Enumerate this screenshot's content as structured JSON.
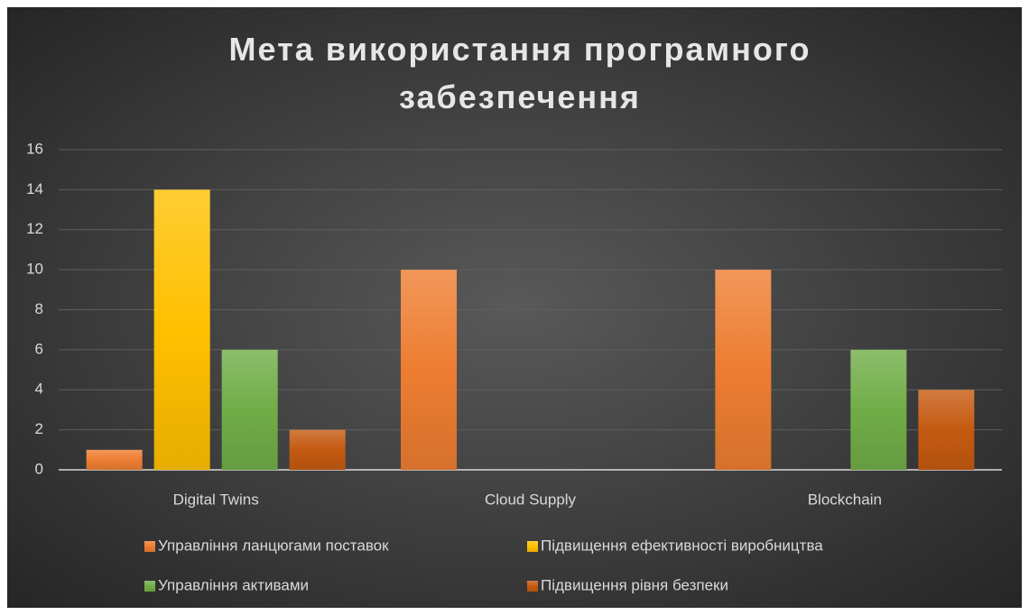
{
  "chart_data": {
    "type": "bar",
    "title": "Мета використання програмного забезпечення",
    "categories": [
      "Digital Twins",
      "Cloud Supply",
      "Blockchain"
    ],
    "series": [
      {
        "name": "Управління ланцюгами поставок",
        "color": "#ed7d31",
        "values": [
          1,
          10,
          10
        ]
      },
      {
        "name": "Підвищення ефективності виробництва",
        "color": "#ffc000",
        "values": [
          14,
          0,
          0
        ]
      },
      {
        "name": "Управління активами",
        "color": "#70ad47",
        "values": [
          6,
          0,
          6
        ]
      },
      {
        "name": "Підвищення рівня безпеки",
        "color": "#c55a11",
        "values": [
          2,
          0,
          4
        ]
      }
    ],
    "ylim": [
      0,
      16
    ],
    "yticks": [
      0,
      2,
      4,
      6,
      8,
      10,
      12,
      14,
      16
    ],
    "grid": true,
    "legend": "bottom"
  }
}
